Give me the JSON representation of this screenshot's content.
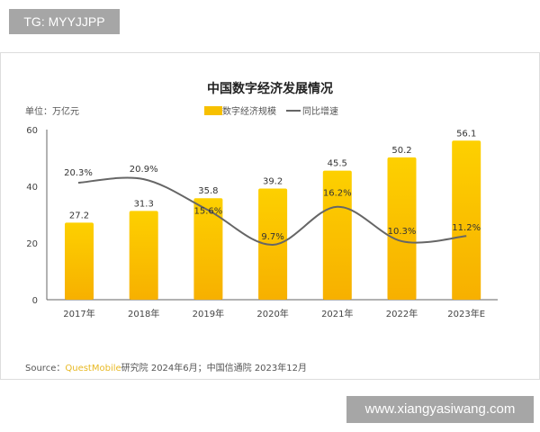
{
  "overlay": {
    "tg_label": "TG: MYYJJPP",
    "watermark": "www.xiangyasiwang.com"
  },
  "chart_data": {
    "type": "bar+line",
    "title": "中国数字经济发展情况",
    "unit_label": "单位：万亿元",
    "categories": [
      "2017年",
      "2018年",
      "2019年",
      "2020年",
      "2021年",
      "2022年",
      "2023年E"
    ],
    "series": [
      {
        "name": "数字经济规模",
        "type": "bar",
        "color": "#f7b500",
        "values": [
          27.2,
          31.3,
          35.8,
          39.2,
          45.5,
          50.2,
          56.1
        ],
        "labels": [
          "27.2",
          "31.3",
          "35.8",
          "39.2",
          "45.5",
          "50.2",
          "56.1"
        ]
      },
      {
        "name": "同比增速",
        "type": "line",
        "color": "#666666",
        "values": [
          20.3,
          20.9,
          15.6,
          9.7,
          16.2,
          10.3,
          11.2
        ],
        "labels": [
          "20.3%",
          "20.9%",
          "15.6%",
          "9.7%",
          "16.2%",
          "10.3%",
          "11.2%"
        ]
      }
    ],
    "yticks": [
      "0",
      "20",
      "40",
      "60"
    ],
    "ylim": [
      0,
      60
    ],
    "grid": false,
    "legend": "top-center"
  },
  "source": {
    "prefix": "Source：",
    "brand": "QuestMobile",
    "rest": "研究院 2024年6月；中国信通院 2023年12月"
  }
}
